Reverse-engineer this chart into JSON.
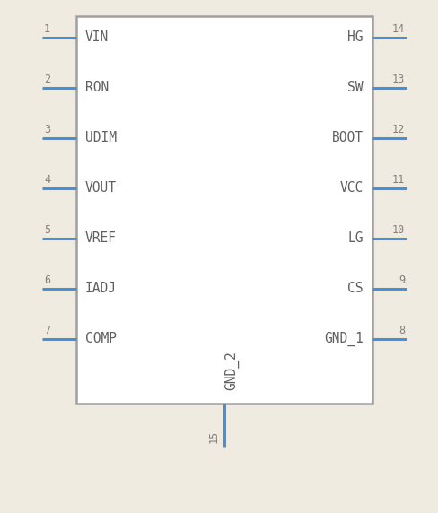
{
  "bg_color": "#f0ebe0",
  "box_color": "#a0a0a0",
  "pin_color": "#4a8fd4",
  "text_color": "#808080",
  "pin_label_color": "#606060",
  "left_pins": [
    {
      "num": "1",
      "label": "VIN"
    },
    {
      "num": "2",
      "label": "RON"
    },
    {
      "num": "3",
      "label": "UDIM"
    },
    {
      "num": "4",
      "label": "VOUT"
    },
    {
      "num": "5",
      "label": "VREF"
    },
    {
      "num": "6",
      "label": "IADJ"
    },
    {
      "num": "7",
      "label": "COMP"
    }
  ],
  "right_pins": [
    {
      "num": "14",
      "label": "HG"
    },
    {
      "num": "13",
      "label": "SW"
    },
    {
      "num": "12",
      "label": "BOOT"
    },
    {
      "num": "11",
      "label": "VCC"
    },
    {
      "num": "10",
      "label": "LG"
    },
    {
      "num": "9",
      "label": "CS"
    },
    {
      "num": "8",
      "label": "GND_1"
    }
  ],
  "bottom_pin": {
    "num": "15",
    "label": "GND_2"
  },
  "font_family": "monospace"
}
